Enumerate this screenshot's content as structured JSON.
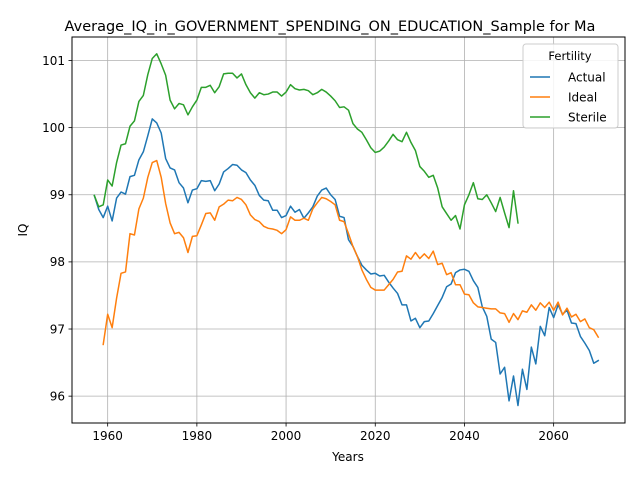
{
  "chart_data": {
    "type": "line",
    "title": "Average_IQ_in_GOVERNMENT_SPENDING_ON_EDUCATION_Sample for Ma",
    "xlabel": "Years",
    "ylabel": "IQ",
    "xlim": [
      1952,
      2076
    ],
    "ylim": [
      95.6,
      101.35
    ],
    "x_ticks": [
      1960,
      1980,
      2000,
      2020,
      2040,
      2060
    ],
    "y_ticks": [
      96,
      97,
      98,
      99,
      100,
      101
    ],
    "grid": true,
    "legend": {
      "title": "Fertility",
      "placement": "upper right"
    },
    "series": [
      {
        "name": "Actual",
        "color": "#1f77b4",
        "x": [
          1957,
          1958,
          1959,
          1960,
          1961,
          1962,
          1963,
          1964,
          1965,
          1966,
          1967,
          1968,
          1969,
          1970,
          1971,
          1972,
          1973,
          1974,
          1975,
          1976,
          1977,
          1978,
          1979,
          1980,
          1981,
          1982,
          1983,
          1984,
          1985,
          1986,
          1987,
          1988,
          1989,
          1990,
          1991,
          1992,
          1993,
          1994,
          1995,
          1996,
          1997,
          1998,
          1999,
          2000,
          2001,
          2002,
          2003,
          2004,
          2005,
          2006,
          2007,
          2008,
          2009,
          2010,
          2011,
          2012,
          2013,
          2014,
          2015,
          2016,
          2017,
          2018,
          2019,
          2020,
          2021,
          2022,
          2023,
          2024,
          2025,
          2026,
          2027,
          2028,
          2029,
          2030,
          2031,
          2032,
          2033,
          2034,
          2035,
          2036,
          2037,
          2038,
          2039,
          2040,
          2041,
          2042,
          2043,
          2044,
          2045,
          2046,
          2047,
          2048,
          2049,
          2050,
          2051,
          2052,
          2053,
          2054,
          2055,
          2056,
          2057,
          2058,
          2059,
          2060,
          2061,
          2062,
          2063,
          2064,
          2065,
          2066,
          2067,
          2068,
          2069,
          2070
        ],
        "values": [
          98.99,
          98.78,
          98.66,
          98.83,
          98.61,
          98.95,
          99.04,
          99.01,
          99.27,
          99.29,
          99.52,
          99.64,
          99.88,
          100.13,
          100.07,
          99.92,
          99.54,
          99.4,
          99.37,
          99.18,
          99.1,
          98.88,
          99.07,
          99.09,
          99.21,
          99.2,
          99.21,
          99.06,
          99.16,
          99.34,
          99.39,
          99.45,
          99.44,
          99.37,
          99.33,
          99.22,
          99.14,
          98.99,
          98.92,
          98.91,
          98.77,
          98.77,
          98.66,
          98.69,
          98.83,
          98.74,
          98.78,
          98.65,
          98.73,
          98.82,
          98.98,
          99.07,
          99.1,
          99.0,
          98.93,
          98.68,
          98.66,
          98.33,
          98.23,
          98.08,
          97.95,
          97.88,
          97.82,
          97.83,
          97.79,
          97.8,
          97.7,
          97.61,
          97.53,
          97.36,
          97.36,
          97.12,
          97.16,
          97.02,
          97.11,
          97.12,
          97.23,
          97.35,
          97.47,
          97.63,
          97.67,
          97.84,
          97.88,
          97.89,
          97.86,
          97.72,
          97.62,
          97.33,
          97.19,
          96.85,
          96.8,
          96.33,
          96.43,
          95.93,
          96.3,
          95.86,
          96.4,
          96.1,
          96.73,
          96.48,
          97.04,
          96.9,
          97.32,
          97.17,
          97.36,
          97.22,
          97.28,
          97.09,
          97.08,
          96.89,
          96.79,
          96.68,
          96.49,
          96.53
        ]
      },
      {
        "name": "Ideal",
        "color": "#ff7f0e",
        "x": [
          1959,
          1960,
          1961,
          1962,
          1963,
          1964,
          1965,
          1966,
          1967,
          1968,
          1969,
          1970,
          1971,
          1972,
          1973,
          1974,
          1975,
          1976,
          1977,
          1978,
          1979,
          1980,
          1981,
          1982,
          1983,
          1984,
          1985,
          1986,
          1987,
          1988,
          1989,
          1990,
          1991,
          1992,
          1993,
          1994,
          1995,
          1996,
          1997,
          1998,
          1999,
          2000,
          2001,
          2002,
          2003,
          2004,
          2005,
          2006,
          2007,
          2008,
          2009,
          2010,
          2011,
          2012,
          2013,
          2014,
          2015,
          2016,
          2017,
          2018,
          2019,
          2020,
          2021,
          2022,
          2023,
          2024,
          2025,
          2026,
          2027,
          2028,
          2029,
          2030,
          2031,
          2032,
          2033,
          2034,
          2035,
          2036,
          2037,
          2038,
          2039,
          2040,
          2041,
          2042,
          2043,
          2044,
          2045,
          2046,
          2047,
          2048,
          2049,
          2050,
          2051,
          2052,
          2053,
          2054,
          2055,
          2056,
          2057,
          2058,
          2059,
          2060,
          2061,
          2062,
          2063,
          2064,
          2065,
          2066,
          2067,
          2068,
          2069,
          2070
        ],
        "values": [
          96.77,
          97.22,
          97.02,
          97.46,
          97.83,
          97.85,
          98.42,
          98.4,
          98.79,
          98.95,
          99.26,
          99.48,
          99.51,
          99.26,
          98.87,
          98.58,
          98.42,
          98.44,
          98.36,
          98.14,
          98.38,
          98.39,
          98.55,
          98.72,
          98.73,
          98.62,
          98.82,
          98.86,
          98.92,
          98.91,
          98.96,
          98.93,
          98.85,
          98.7,
          98.63,
          98.6,
          98.53,
          98.5,
          98.49,
          98.47,
          98.42,
          98.48,
          98.67,
          98.62,
          98.62,
          98.65,
          98.62,
          98.79,
          98.88,
          98.96,
          98.94,
          98.9,
          98.85,
          98.62,
          98.6,
          98.42,
          98.23,
          98.08,
          97.88,
          97.74,
          97.62,
          97.58,
          97.58,
          97.58,
          97.66,
          97.74,
          97.85,
          97.86,
          98.09,
          98.04,
          98.14,
          98.05,
          98.12,
          98.05,
          98.16,
          97.96,
          97.98,
          97.81,
          97.84,
          97.66,
          97.66,
          97.52,
          97.51,
          97.39,
          97.33,
          97.32,
          97.31,
          97.3,
          97.3,
          97.24,
          97.23,
          97.1,
          97.23,
          97.14,
          97.27,
          97.25,
          97.36,
          97.28,
          97.39,
          97.32,
          97.4,
          97.28,
          97.4,
          97.21,
          97.31,
          97.18,
          97.22,
          97.11,
          97.15,
          97.02,
          96.99,
          96.88
        ]
      },
      {
        "name": "Sterile",
        "color": "#2ca02c",
        "x": [
          1957,
          1958,
          1959,
          1960,
          1961,
          1962,
          1963,
          1964,
          1965,
          1966,
          1967,
          1968,
          1969,
          1970,
          1971,
          1972,
          1973,
          1974,
          1975,
          1976,
          1977,
          1978,
          1979,
          1980,
          1981,
          1982,
          1983,
          1984,
          1985,
          1986,
          1987,
          1988,
          1989,
          1990,
          1991,
          1992,
          1993,
          1994,
          1995,
          1996,
          1997,
          1998,
          1999,
          2000,
          2001,
          2002,
          2003,
          2004,
          2005,
          2006,
          2007,
          2008,
          2009,
          2010,
          2011,
          2012,
          2013,
          2014,
          2015,
          2016,
          2017,
          2018,
          2019,
          2020,
          2021,
          2022,
          2023,
          2024,
          2025,
          2026,
          2027,
          2028,
          2029,
          2030,
          2031,
          2032,
          2033,
          2034,
          2035,
          2036,
          2037,
          2038,
          2039,
          2040,
          2041,
          2042,
          2043,
          2044,
          2045,
          2046,
          2047,
          2048,
          2049,
          2050,
          2051,
          2052
        ],
        "values": [
          98.99,
          98.82,
          98.85,
          99.22,
          99.13,
          99.48,
          99.74,
          99.76,
          100.02,
          100.1,
          100.39,
          100.48,
          100.79,
          101.03,
          101.1,
          100.95,
          100.78,
          100.41,
          100.28,
          100.36,
          100.34,
          100.19,
          100.31,
          100.41,
          100.6,
          100.6,
          100.63,
          100.52,
          100.61,
          100.8,
          100.81,
          100.81,
          100.74,
          100.8,
          100.64,
          100.52,
          100.44,
          100.52,
          100.49,
          100.5,
          100.53,
          100.53,
          100.47,
          100.53,
          100.64,
          100.58,
          100.56,
          100.57,
          100.55,
          100.49,
          100.52,
          100.57,
          100.53,
          100.47,
          100.4,
          100.3,
          100.31,
          100.26,
          100.06,
          99.98,
          99.93,
          99.82,
          99.7,
          99.63,
          99.65,
          99.71,
          99.8,
          99.9,
          99.82,
          99.79,
          99.93,
          99.78,
          99.66,
          99.42,
          99.35,
          99.26,
          99.29,
          99.1,
          98.82,
          98.72,
          98.62,
          98.69,
          98.49,
          98.85,
          99.0,
          99.18,
          98.94,
          98.93,
          99.0,
          98.88,
          98.75,
          98.96,
          98.73,
          98.51,
          99.06,
          98.58
        ]
      }
    ]
  }
}
